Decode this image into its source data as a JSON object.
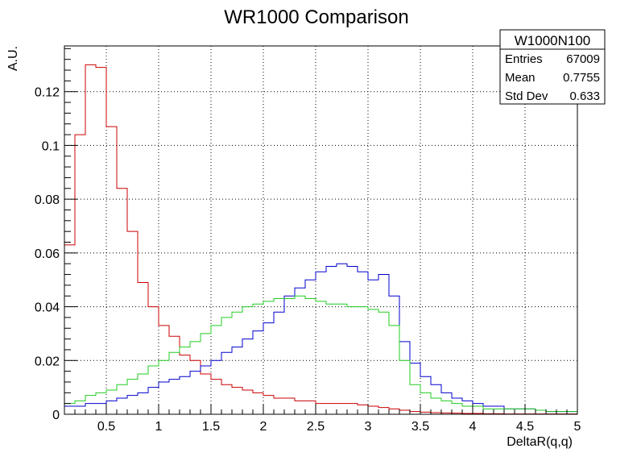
{
  "chart_data": {
    "type": "histogram",
    "title": "WR1000 Comparison",
    "xlabel": "DeltaR(q,q)",
    "ylabel": "A.U.",
    "xlim": [
      0.1,
      5.0
    ],
    "ylim": [
      0,
      0.137
    ],
    "grid": true,
    "x_ticks": [
      0.5,
      1,
      1.5,
      2,
      2.5,
      3,
      3.5,
      4,
      4.5,
      5
    ],
    "x_tick_labels": [
      "0.5",
      "1",
      "1.5",
      "2",
      "2.5",
      "3",
      "3.5",
      "4",
      "4.5",
      "5"
    ],
    "y_ticks": [
      0,
      0.02,
      0.04,
      0.06,
      0.08,
      0.1,
      0.12
    ],
    "y_tick_labels": [
      "0",
      "0.02",
      "0.04",
      "0.06",
      "0.08",
      "0.1",
      "0.12"
    ],
    "bin_edges_start": 0.1,
    "bin_width": 0.1,
    "series": [
      {
        "color": "#cc0000",
        "values": [
          0.063,
          0.104,
          0.13,
          0.129,
          0.107,
          0.084,
          0.068,
          0.049,
          0.04,
          0.033,
          0.029,
          0.022,
          0.02,
          0.015,
          0.013,
          0.011,
          0.01,
          0.009,
          0.008,
          0.007,
          0.006,
          0.006,
          0.005,
          0.005,
          0.004,
          0.004,
          0.004,
          0.004,
          0.0035,
          0.003,
          0.0025,
          0.002,
          0.0015,
          0.001,
          0.0008,
          0.0006,
          0.0005,
          0.0004,
          0.0003,
          0.0003,
          0.0002,
          0.0002,
          0.0001,
          0.0001,
          0.0001,
          0.0001,
          0.0001,
          0.0001,
          0.0001
        ]
      },
      {
        "color": "#0000cc",
        "values": [
          0.003,
          0.003,
          0.004,
          0.004,
          0.005,
          0.006,
          0.007,
          0.008,
          0.01,
          0.012,
          0.013,
          0.014,
          0.016,
          0.018,
          0.02,
          0.023,
          0.025,
          0.028,
          0.031,
          0.034,
          0.038,
          0.044,
          0.047,
          0.05,
          0.053,
          0.055,
          0.056,
          0.055,
          0.053,
          0.05,
          0.052,
          0.044,
          0.027,
          0.019,
          0.014,
          0.011,
          0.008,
          0.006,
          0.005,
          0.004,
          0.003,
          0.003,
          0.002,
          0.002,
          0.002,
          0.0015,
          0.001,
          0.001,
          0.001
        ]
      },
      {
        "color": "#22cc22",
        "values": [
          0.004,
          0.005,
          0.007,
          0.008,
          0.009,
          0.011,
          0.013,
          0.015,
          0.018,
          0.02,
          0.023,
          0.025,
          0.027,
          0.03,
          0.033,
          0.036,
          0.038,
          0.04,
          0.041,
          0.042,
          0.043,
          0.043,
          0.044,
          0.043,
          0.042,
          0.041,
          0.041,
          0.04,
          0.04,
          0.039,
          0.038,
          0.033,
          0.02,
          0.011,
          0.008,
          0.006,
          0.005,
          0.004,
          0.003,
          0.003,
          0.002,
          0.002,
          0.002,
          0.002,
          0.002,
          0.0015,
          0.001,
          0.001,
          0.001
        ]
      }
    ]
  },
  "stats_box": {
    "title": "W1000N100",
    "rows": [
      {
        "label": "Entries",
        "value": "67009"
      },
      {
        "label": "Mean",
        "value": "0.7755"
      },
      {
        "label": "Std Dev",
        "value": "0.633"
      }
    ]
  }
}
